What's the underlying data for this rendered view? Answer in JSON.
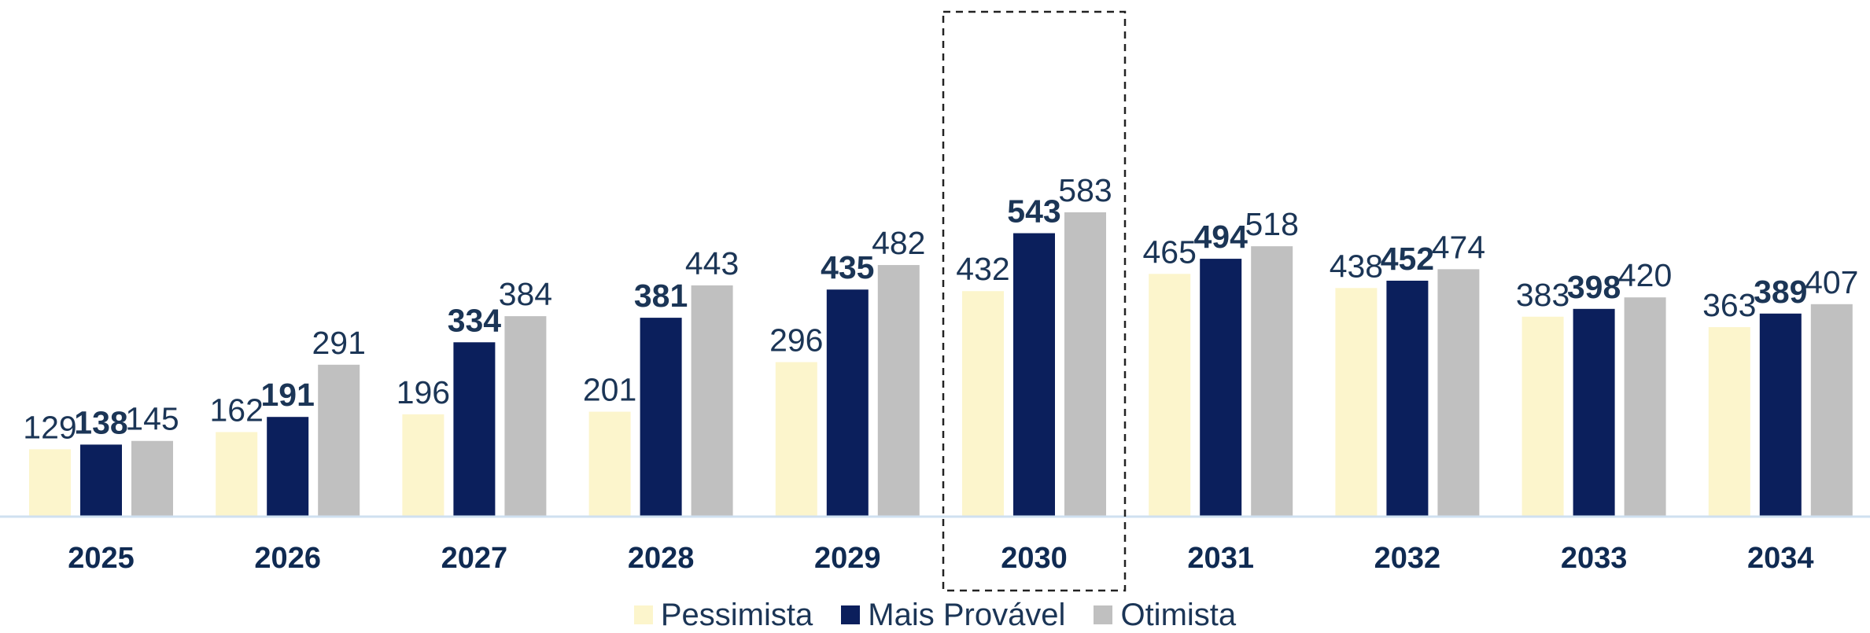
{
  "chart_data": {
    "type": "bar",
    "categories": [
      "2025",
      "2026",
      "2027",
      "2028",
      "2029",
      "2030",
      "2031",
      "2032",
      "2033",
      "2034"
    ],
    "series": [
      {
        "name": "Pessimista",
        "color": "#fcf5cc",
        "values": [
          129,
          162,
          196,
          201,
          296,
          432,
          465,
          438,
          383,
          363
        ]
      },
      {
        "name": "Mais Provável",
        "color": "#0b1f5c",
        "bold_labels": true,
        "values": [
          138,
          191,
          334,
          381,
          435,
          543,
          494,
          452,
          398,
          389
        ]
      },
      {
        "name": "Otimista",
        "color": "#c0c0c0",
        "values": [
          145,
          291,
          384,
          443,
          482,
          583,
          518,
          474,
          420,
          407
        ]
      }
    ],
    "highlighted_category": "2030",
    "ylim": [
      0,
      640
    ],
    "grid": false,
    "legend_position": "bottom-center",
    "axis_color": "#cfe0f0",
    "label_color": "#1b3556"
  }
}
